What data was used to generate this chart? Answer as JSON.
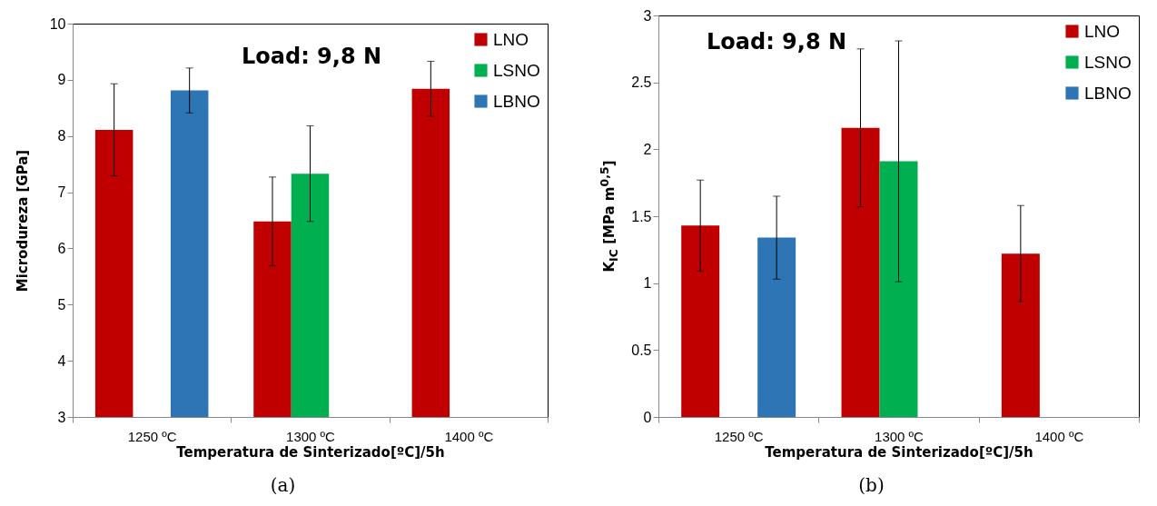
{
  "chart_data": [
    {
      "type": "bar",
      "title": "Load: 9,8 N",
      "xlabel": "Temperatura de Sinterizado[ºC]/5h",
      "ylabel": "Microdureza [GPa]",
      "categories": [
        "1250 ºC",
        "1300 ºC",
        "1400 ºC"
      ],
      "series": [
        {
          "name": "LNO",
          "color": "#c00000",
          "values": [
            8.11,
            6.48,
            8.84
          ],
          "errors": [
            0.82,
            0.79,
            0.49
          ]
        },
        {
          "name": "LSNO",
          "color": "#00b050",
          "values": [
            null,
            7.33,
            null
          ],
          "errors": [
            null,
            0.85,
            null
          ]
        },
        {
          "name": "LBNO",
          "color": "#2e75b6",
          "values": [
            8.81,
            null,
            null
          ],
          "errors": [
            0.4,
            null,
            null
          ]
        }
      ],
      "ylim": [
        3,
        10
      ],
      "yticks": [
        3,
        4,
        5,
        6,
        7,
        8,
        9,
        10
      ],
      "grid": false,
      "legend": "top right",
      "annotations": [
        "(a)"
      ]
    },
    {
      "type": "bar",
      "title": "Load: 9,8 N",
      "xlabel": "Temperatura de Sinterizado[ºC]/5h",
      "ylabel": "K$_{IC}$ [MPa m$^{0,5}$]",
      "categories": [
        "1250 ºC",
        "1300 ºC",
        "1400 ºC"
      ],
      "series": [
        {
          "name": "LNO",
          "color": "#c00000",
          "values": [
            1.43,
            2.16,
            1.22
          ],
          "errors": [
            0.34,
            0.59,
            0.36
          ]
        },
        {
          "name": "LSNO",
          "color": "#00b050",
          "values": [
            null,
            1.91,
            null
          ],
          "errors": [
            null,
            0.9,
            null
          ]
        },
        {
          "name": "LBNO",
          "color": "#2e75b6",
          "values": [
            1.34,
            null,
            null
          ],
          "errors": [
            0.31,
            null,
            null
          ]
        }
      ],
      "ylim": [
        0,
        3
      ],
      "yticks": [
        0,
        0.5,
        1,
        1.5,
        2,
        2.5,
        3
      ],
      "grid": false,
      "legend": "top right",
      "annotations": [
        "(b)"
      ]
    }
  ]
}
